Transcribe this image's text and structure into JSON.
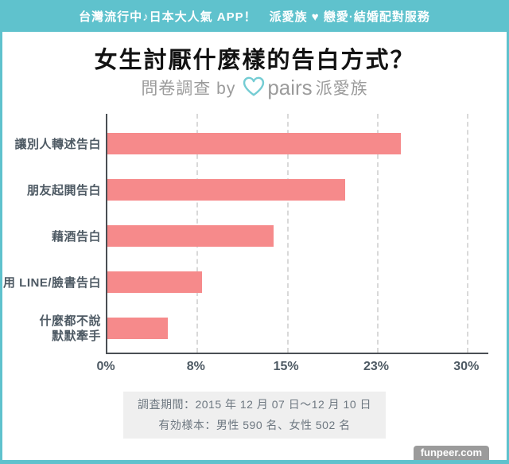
{
  "header": {
    "banner": "台灣流行中♪日本大人氣 APP！　派愛族 ♥ 戀愛·結婚配對服務"
  },
  "title": "女生討厭什麼樣的告白方式？",
  "subtitle": {
    "prefix": "問卷調查 by",
    "logo_icon": "pairs-heart-logo",
    "brand": "pairs",
    "brand_suffix": "派愛族"
  },
  "chart_data": {
    "type": "bar",
    "orientation": "horizontal",
    "title": "女生討厭什麼樣的告白方式？",
    "categories": [
      "讓別人轉述告白",
      "朋友起閧告白",
      "藉酒告白",
      "用 LINE/臉書告白",
      "什麼都不說\n默默牽手"
    ],
    "values": [
      24.4,
      19.8,
      13.8,
      7.9,
      5.0
    ],
    "unit": "%",
    "xlim": [
      0,
      30
    ],
    "x_ticks": [
      {
        "value": 0,
        "label": "0%"
      },
      {
        "value": 7.5,
        "label": "8%"
      },
      {
        "value": 15,
        "label": "15%"
      },
      {
        "value": 22.5,
        "label": "23%"
      },
      {
        "value": 30,
        "label": "30%"
      }
    ],
    "grid": "vertical-dashed",
    "legend": "none",
    "bar_color": "#f68a8b"
  },
  "footer": {
    "line1": "調査期間：2015 年 12 月 07 日～12 月 10 日",
    "line2": "有効様本：男性 590 名、女性 502 名"
  },
  "watermark": "funpeer.com",
  "colors": {
    "accent_teal": "#5fc2cd",
    "bar_pink": "#f68a8b",
    "label_dark": "#4e5a64",
    "muted_gray": "#9b9b9b",
    "info_bg": "#efefef"
  }
}
